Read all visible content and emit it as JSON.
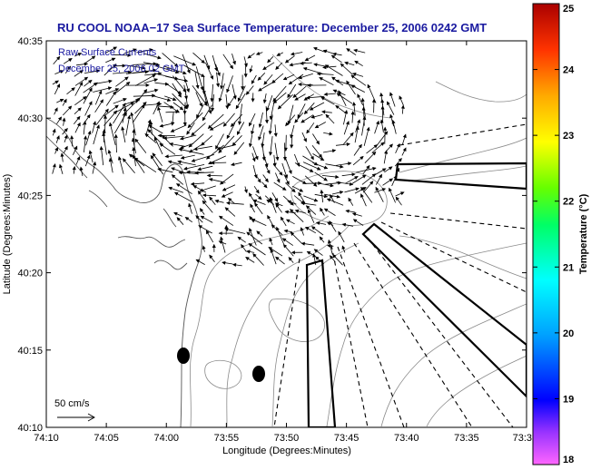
{
  "chart_data": {
    "type": "map",
    "title": "RU COOL  NOAA−17  Sea Surface Temperature:  December 25, 2006 0242 GMT",
    "xlabel": "Longitude (Degrees:Minutes)",
    "ylabel": "Latitude (Degrees:Minutes)",
    "x_ticks": [
      "74:10",
      "74:05",
      "74:00",
      "73:55",
      "73:50",
      "73:45",
      "73:40",
      "73:35",
      "73:3"
    ],
    "y_ticks": [
      "40:10",
      "40:15",
      "40:20",
      "40:25",
      "40:30",
      "40:35"
    ],
    "annotations": [
      "Raw Surface Currents",
      "December 25, 2006 02 GMT"
    ],
    "scale_label": "50 cm/s",
    "colorbar": {
      "label": "Temperature (°C)",
      "ticks": [
        "18",
        "19",
        "20",
        "21",
        "22",
        "23",
        "24",
        "25"
      ],
      "range": [
        18,
        25
      ]
    },
    "markers": [
      {
        "name": "station-a",
        "lon_min": 59.0,
        "lat_min": 14.6
      },
      {
        "name": "station-b",
        "lon_min": 52.3,
        "lat_min": 13.5
      }
    ],
    "colors": {
      "title": "#1a1aa0",
      "contour": "#888888",
      "vector": "#000000"
    }
  }
}
